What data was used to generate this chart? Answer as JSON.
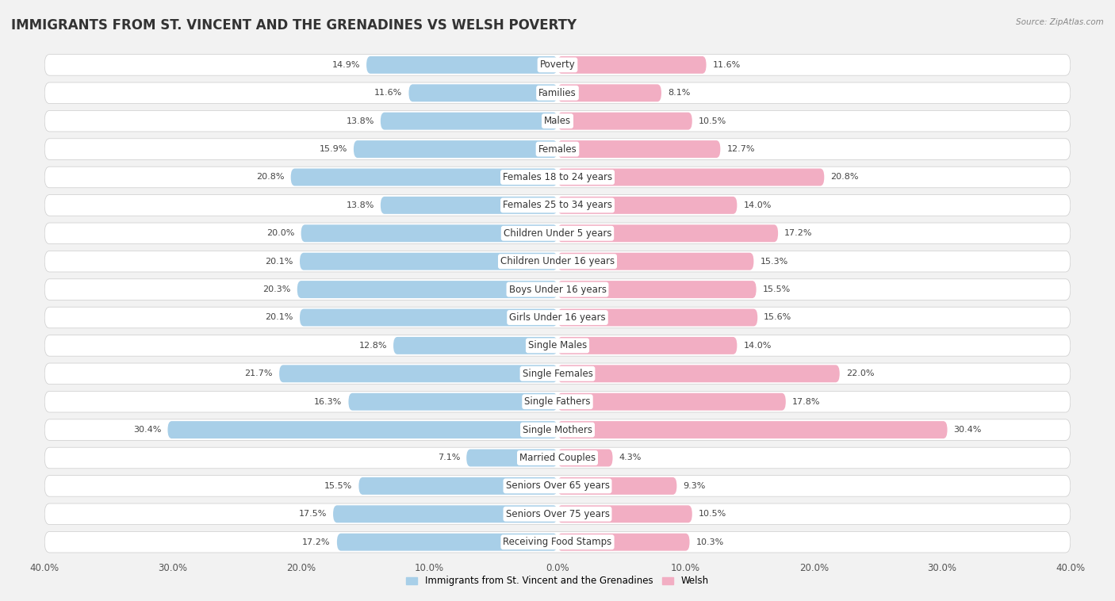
{
  "title": "IMMIGRANTS FROM ST. VINCENT AND THE GRENADINES VS WELSH POVERTY",
  "source": "Source: ZipAtlas.com",
  "categories": [
    "Poverty",
    "Families",
    "Males",
    "Females",
    "Females 18 to 24 years",
    "Females 25 to 34 years",
    "Children Under 5 years",
    "Children Under 16 years",
    "Boys Under 16 years",
    "Girls Under 16 years",
    "Single Males",
    "Single Females",
    "Single Fathers",
    "Single Mothers",
    "Married Couples",
    "Seniors Over 65 years",
    "Seniors Over 75 years",
    "Receiving Food Stamps"
  ],
  "left_values": [
    14.9,
    11.6,
    13.8,
    15.9,
    20.8,
    13.8,
    20.0,
    20.1,
    20.3,
    20.1,
    12.8,
    21.7,
    16.3,
    30.4,
    7.1,
    15.5,
    17.5,
    17.2
  ],
  "right_values": [
    11.6,
    8.1,
    10.5,
    12.7,
    20.8,
    14.0,
    17.2,
    15.3,
    15.5,
    15.6,
    14.0,
    22.0,
    17.8,
    30.4,
    4.3,
    9.3,
    10.5,
    10.3
  ],
  "left_color": "#a8cfe8",
  "right_color": "#f2aec3",
  "row_bg_color": "#e8e8e8",
  "background_color": "#f2f2f2",
  "xlim": 40.0,
  "legend_left": "Immigrants from St. Vincent and the Grenadines",
  "legend_right": "Welsh",
  "title_fontsize": 12,
  "label_fontsize": 8.5,
  "value_fontsize": 8
}
